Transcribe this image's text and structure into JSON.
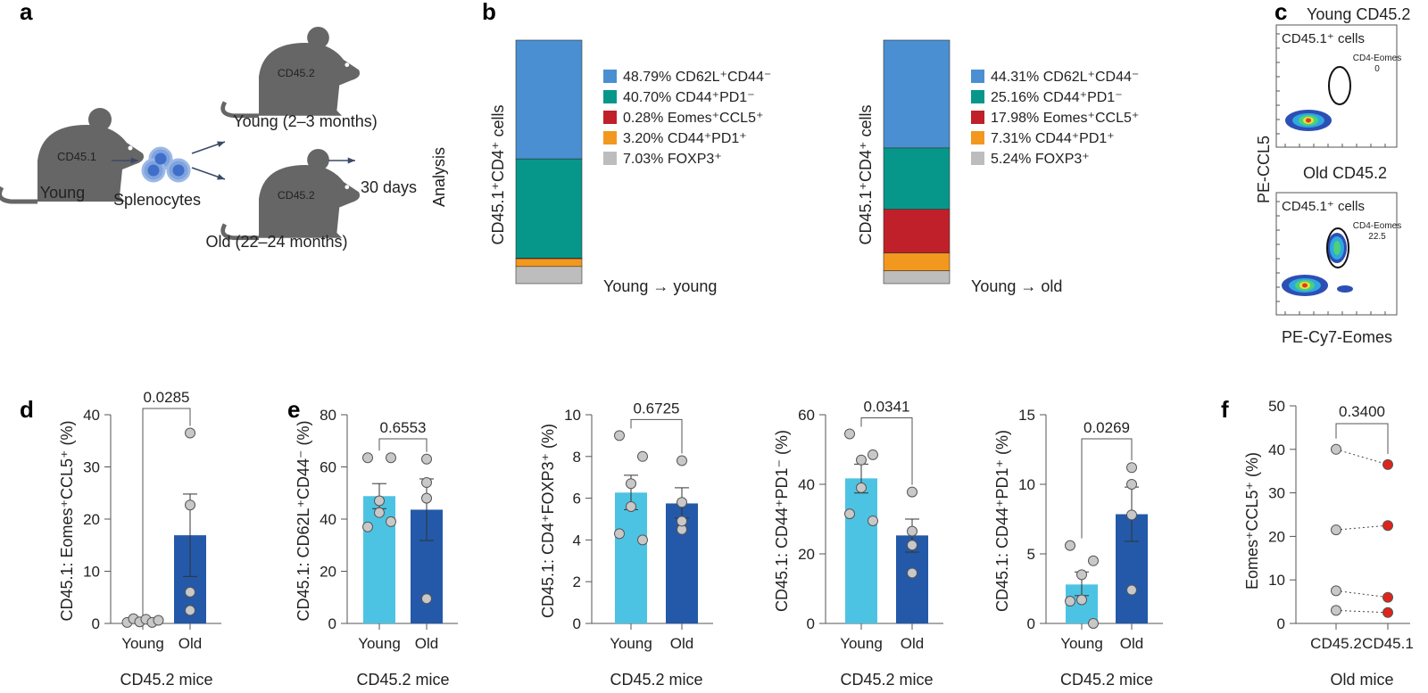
{
  "panel_labels": [
    "a",
    "b",
    "c",
    "d",
    "e",
    "f"
  ],
  "schematic": {
    "donor_marker": "CD45.1",
    "donor_label": "Young",
    "cells_label": "Splenocytes",
    "recipient_marker": "CD45.2",
    "young_recipient_label": "Young (2–3 months)",
    "old_recipient_label": "Old (22–24 months)",
    "duration_label": "30 days",
    "endpoint_label": "Analysis",
    "mouse_color": "#666666",
    "cell_color": "#3f6fc9",
    "arrow_color": "#3a4a66"
  },
  "flow": {
    "young_title": "Young CD45.2",
    "old_title": "Old CD45.2",
    "gate_population": "CD45.1⁺ cells",
    "gate_name": "CD4-Eomes",
    "young_gate_value": "0",
    "old_gate_value": "22.5",
    "y_axis": "PE-CCL5",
    "x_axis": "PE-Cy7-Eomes"
  },
  "chart_data": [
    {
      "type": "bar",
      "stacked": true,
      "panel": "b",
      "ylabel": "CD45.1⁺CD4⁺ cells",
      "bars": [
        {
          "label": "Young → young",
          "segments": [
            {
              "name": "CD62L⁺CD44⁻",
              "value": 48.79,
              "legend": "48.79% CD62L⁺CD44⁻",
              "color": "#4a8fd1"
            },
            {
              "name": "CD44⁺PD1⁻",
              "value": 40.7,
              "legend": "40.70% CD44⁺PD1⁻",
              "color": "#07978a"
            },
            {
              "name": "Eomes⁺CCL5⁺",
              "value": 0.28,
              "legend": "0.28% Eomes⁺CCL5⁺",
              "color": "#c0202a"
            },
            {
              "name": "CD44⁺PD1⁺",
              "value": 3.2,
              "legend": "3.20% CD44⁺PD1⁺",
              "color": "#f3981e"
            },
            {
              "name": "FOXP3⁺",
              "value": 7.03,
              "legend": "7.03% FOXP3⁺",
              "color": "#bdbdbd"
            }
          ]
        },
        {
          "label": "Young → old",
          "segments": [
            {
              "name": "CD62L⁺CD44⁻",
              "value": 44.31,
              "legend": "44.31% CD62L⁺CD44⁻",
              "color": "#4a8fd1"
            },
            {
              "name": "CD44⁺PD1⁻",
              "value": 25.16,
              "legend": "25.16% CD44⁺PD1⁻",
              "color": "#07978a"
            },
            {
              "name": "Eomes⁺CCL5⁺",
              "value": 17.98,
              "legend": "17.98% Eomes⁺CCL5⁺",
              "color": "#c0202a"
            },
            {
              "name": "CD44⁺PD1⁺",
              "value": 7.31,
              "legend": "7.31% CD44⁺PD1⁺",
              "color": "#f3981e"
            },
            {
              "name": "FOXP3⁺",
              "value": 5.24,
              "legend": "5.24% FOXP3⁺",
              "color": "#bdbdbd"
            }
          ]
        }
      ]
    },
    {
      "type": "bar",
      "panel": "d",
      "ylabel": "CD45.1: Eomes⁺CCL5⁺ (%)",
      "xlabel": "CD45.2 mice",
      "categories": [
        "Young",
        "Old"
      ],
      "ylim": [
        0,
        40
      ],
      "yticks": [
        0,
        10,
        20,
        30,
        40
      ],
      "p_value": "0.0285",
      "means": [
        0.5,
        16.9
      ],
      "sem_low": [
        0.3,
        9.0
      ],
      "sem_high": [
        0.7,
        24.8
      ],
      "points": [
        [
          0.2,
          0.9,
          0.3,
          0.8,
          0.2,
          0.6
        ],
        [
          36.5,
          22.7,
          6.0,
          2.5
        ]
      ]
    },
    {
      "type": "bar",
      "panel": "e",
      "ylabel": "CD45.1: CD62L⁺CD44⁻ (%)",
      "xlabel": "CD45.2 mice",
      "categories": [
        "Young",
        "Old"
      ],
      "ylim": [
        0,
        80
      ],
      "yticks": [
        0,
        20,
        40,
        60,
        80
      ],
      "p_value": "0.6553",
      "means": [
        48.8,
        43.6
      ],
      "sem_low": [
        44.0,
        31.8
      ],
      "sem_high": [
        53.6,
        55.4
      ],
      "points": [
        [
          63.5,
          63.5,
          47.0,
          42.5,
          37.0,
          39.0
        ],
        [
          63.0,
          54.0,
          48.0,
          9.5
        ]
      ]
    },
    {
      "type": "bar",
      "panel": "e",
      "ylabel": "CD45.1: CD4⁺FOXP3⁺ (%)",
      "xlabel": "CD45.2 mice",
      "categories": [
        "Young",
        "Old"
      ],
      "ylim": [
        0,
        10
      ],
      "yticks": [
        0,
        2,
        4,
        6,
        8,
        10
      ],
      "p_value": "0.6725",
      "means": [
        6.27,
        5.75
      ],
      "sem_low": [
        5.45,
        5.05
      ],
      "sem_high": [
        7.1,
        6.5
      ],
      "points": [
        [
          9.0,
          8.0,
          6.7,
          5.6,
          4.3,
          4.0
        ],
        [
          7.8,
          5.8,
          4.5,
          4.9
        ]
      ]
    },
    {
      "type": "bar",
      "panel": "e",
      "ylabel": "CD45.1: CD44⁺PD1⁻ (%)",
      "xlabel": "CD45.2 mice",
      "categories": [
        "Young",
        "Old"
      ],
      "ylim": [
        0,
        60
      ],
      "yticks": [
        0,
        20,
        40,
        60
      ],
      "p_value": "0.0341",
      "means": [
        41.7,
        25.3
      ],
      "sem_low": [
        37.5,
        20.5
      ],
      "sem_high": [
        45.8,
        30.0
      ],
      "points": [
        [
          54.5,
          48.5,
          47.0,
          39.0,
          31.5,
          29.5
        ],
        [
          37.8,
          26.5,
          22.5,
          14.5
        ]
      ]
    },
    {
      "type": "bar",
      "panel": "e",
      "ylabel": "CD45.1: CD44⁺PD1⁺ (%)",
      "xlabel": "CD45.2 mice",
      "categories": [
        "Young",
        "Old"
      ],
      "ylim": [
        0,
        15
      ],
      "yticks": [
        0,
        5,
        10,
        15
      ],
      "p_value": "0.0269",
      "means": [
        2.8,
        7.85
      ],
      "sem_low": [
        2.0,
        5.9
      ],
      "sem_high": [
        3.7,
        9.8
      ],
      "points": [
        [
          5.6,
          4.5,
          3.5,
          1.7,
          1.6,
          0.0
        ],
        [
          11.2,
          10.0,
          7.8,
          2.4
        ]
      ]
    },
    {
      "type": "scatter",
      "paired": true,
      "panel": "f",
      "ylabel": "Eomes⁺CCL5⁺ (%)",
      "xlabel": "Old mice",
      "categories": [
        "CD45.2",
        "CD45.1"
      ],
      "ylim": [
        0,
        50
      ],
      "yticks": [
        0,
        10,
        20,
        30,
        40,
        50
      ],
      "p_value": "0.3400",
      "pairs": [
        [
          40.0,
          36.5
        ],
        [
          21.5,
          22.5
        ],
        [
          7.5,
          6.0
        ],
        [
          3.0,
          2.5
        ]
      ],
      "colors": [
        "#c8c8c8",
        "#e0241b"
      ]
    }
  ],
  "colors": {
    "young_bar": "#4dc3e3",
    "old_bar": "#2359a8",
    "point": "#c8c8c8"
  }
}
